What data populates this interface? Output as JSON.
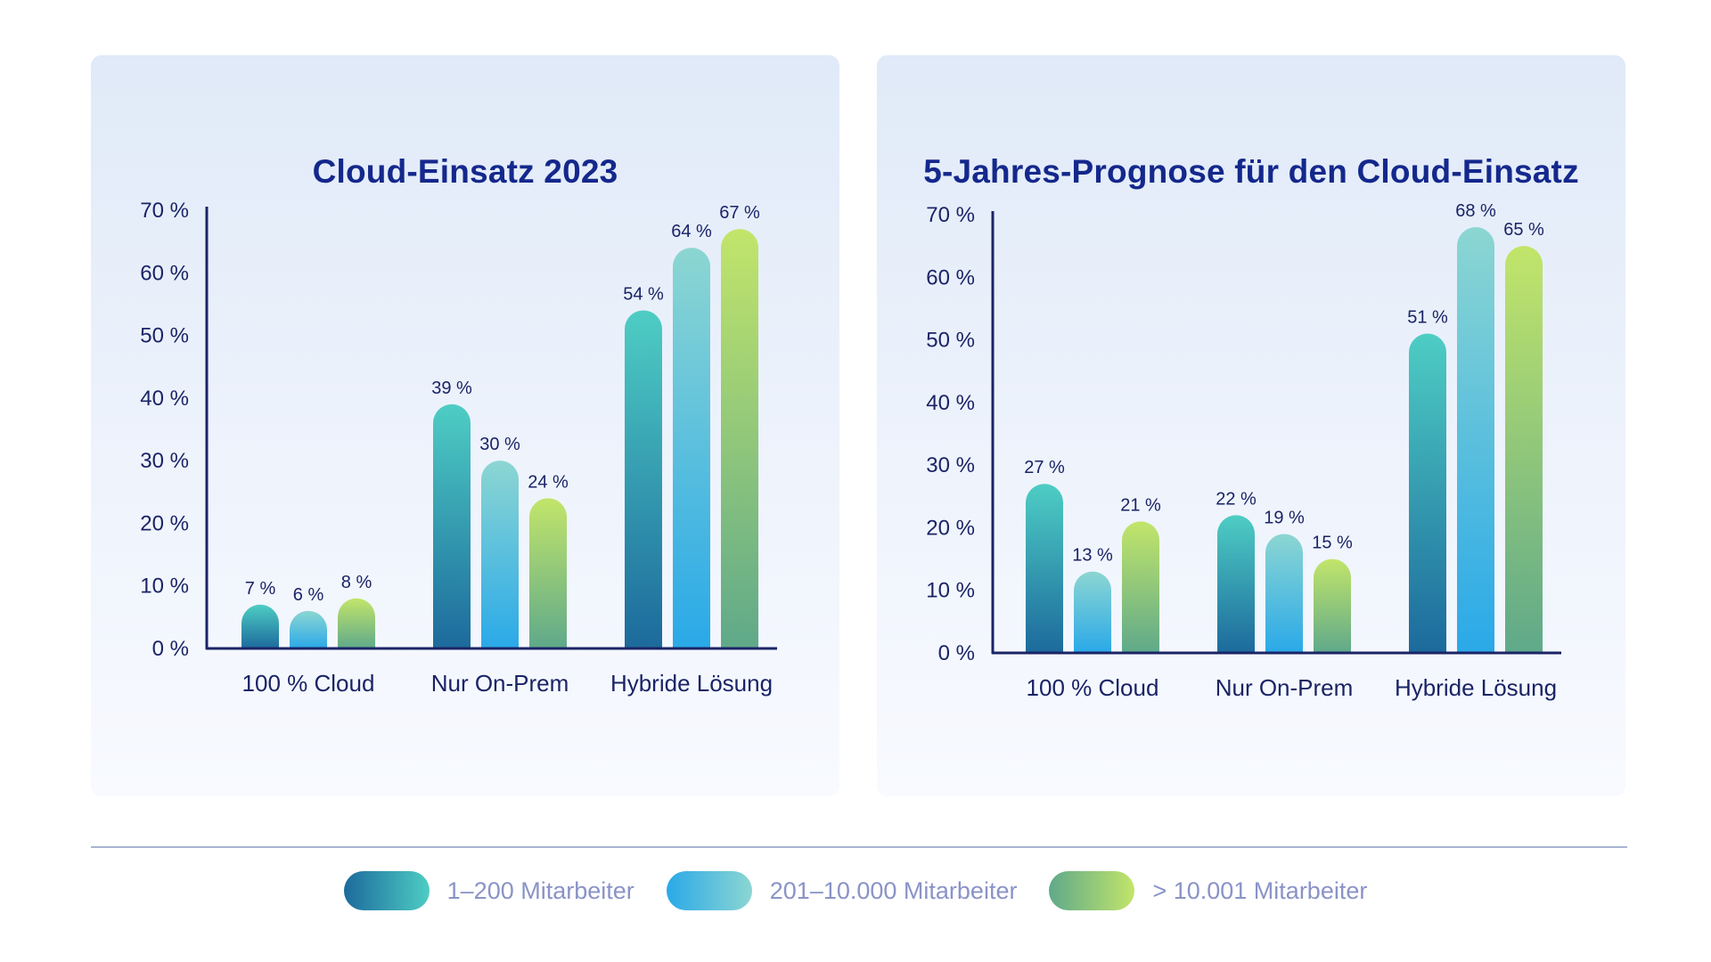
{
  "legend": [
    {
      "label": "1–200 Mitarbeiter",
      "color_start": "#1c6a9c",
      "color_end": "#4ecdc4"
    },
    {
      "label": "201–10.000 Mitarbeiter",
      "color_start": "#2aa9e8",
      "color_end": "#8cd6d2"
    },
    {
      "label": "> 10.001 Mitarbeiter",
      "color_start": "#5fa98a",
      "color_end": "#c2e56a"
    }
  ],
  "colors": {
    "axis": "#1a2466",
    "title": "#14288c",
    "panel_bg": "#e3ecf9"
  },
  "chart_data": [
    {
      "type": "bar",
      "title": "Cloud-Einsatz 2023",
      "categories": [
        "100 % Cloud",
        "Nur On-Prem",
        "Hybride Lösung"
      ],
      "yticks": [
        "0 %",
        "10 %",
        "20 %",
        "30 %",
        "40 %",
        "50 %",
        "60 %",
        "70 %"
      ],
      "ylim": [
        0,
        70
      ],
      "xlabel": "",
      "ylabel": "",
      "series": [
        {
          "name": "1–200 Mitarbeiter",
          "values": [
            7,
            39,
            54
          ],
          "labels": [
            "7 %",
            "39 %",
            "54 %"
          ]
        },
        {
          "name": "201–10.000 Mitarbeiter",
          "values": [
            6,
            30,
            64
          ],
          "labels": [
            "6 %",
            "30 %",
            "64 %"
          ]
        },
        {
          "name": "> 10.001 Mitarbeiter",
          "values": [
            8,
            24,
            67
          ],
          "labels": [
            "8 %",
            "24 %",
            "67 %"
          ]
        }
      ]
    },
    {
      "type": "bar",
      "title": "5-Jahres-Prognose für den Cloud-Einsatz",
      "categories": [
        "100 % Cloud",
        "Nur On-Prem",
        "Hybride Lösung"
      ],
      "yticks": [
        "0 %",
        "10 %",
        "20 %",
        "30 %",
        "40 %",
        "50 %",
        "60 %",
        "70 %"
      ],
      "ylim": [
        0,
        70
      ],
      "xlabel": "",
      "ylabel": "",
      "series": [
        {
          "name": "1–200 Mitarbeiter",
          "values": [
            27,
            22,
            51
          ],
          "labels": [
            "27 %",
            "22 %",
            "51 %"
          ]
        },
        {
          "name": "201–10.000 Mitarbeiter",
          "values": [
            13,
            19,
            68
          ],
          "labels": [
            "13 %",
            "19 %",
            "68 %"
          ]
        },
        {
          "name": "> 10.001 Mitarbeiter",
          "values": [
            21,
            15,
            65
          ],
          "labels": [
            "21 %",
            "15 %",
            "65 %"
          ]
        }
      ]
    }
  ]
}
